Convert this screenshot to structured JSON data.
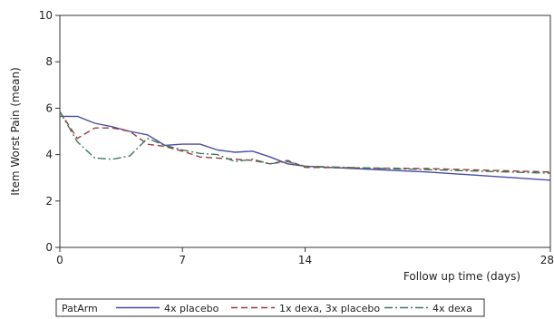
{
  "chart_data": {
    "type": "line",
    "title": "",
    "xlabel": "Follow up time (days)",
    "ylabel": "Item Worst Pain (mean)",
    "xlim": [
      0,
      28
    ],
    "ylim": [
      0,
      10
    ],
    "xticks": [
      0,
      7,
      14,
      28
    ],
    "yticks": [
      0,
      2,
      4,
      6,
      8,
      10
    ],
    "grid": false,
    "legend_title": "PatArm",
    "legend_position": "bottom",
    "series": [
      {
        "name": "4x placebo",
        "color": "#4a4aa8",
        "dash": "solid",
        "x": [
          0,
          1,
          2,
          3,
          4,
          5,
          6,
          7,
          8,
          9,
          10,
          11,
          12,
          13,
          14,
          21,
          28
        ],
        "y": [
          5.65,
          5.65,
          5.35,
          5.2,
          5.0,
          4.85,
          4.4,
          4.45,
          4.45,
          4.2,
          4.1,
          4.15,
          3.9,
          3.6,
          3.5,
          3.25,
          2.9
        ]
      },
      {
        "name": "1x dexa, 3x placebo",
        "color": "#9b3a3a",
        "dash": "dashed",
        "x": [
          0,
          1,
          2,
          3,
          4,
          5,
          6,
          7,
          8,
          9,
          10,
          11,
          12,
          13,
          14,
          21,
          28
        ],
        "y": [
          5.85,
          4.7,
          5.15,
          5.15,
          5.0,
          4.45,
          4.35,
          4.15,
          3.9,
          3.85,
          3.8,
          3.75,
          3.6,
          3.75,
          3.45,
          3.4,
          3.25
        ]
      },
      {
        "name": "4x dexa",
        "color": "#3d7a5a",
        "dash": "dashdot",
        "x": [
          0,
          1,
          2,
          3,
          4,
          5,
          6,
          7,
          8,
          9,
          10,
          11,
          12,
          13,
          14,
          21,
          28
        ],
        "y": [
          5.85,
          4.55,
          3.85,
          3.8,
          3.95,
          4.7,
          4.4,
          4.2,
          4.05,
          4.0,
          3.7,
          3.8,
          3.6,
          3.7,
          3.5,
          3.35,
          3.2
        ]
      }
    ]
  }
}
